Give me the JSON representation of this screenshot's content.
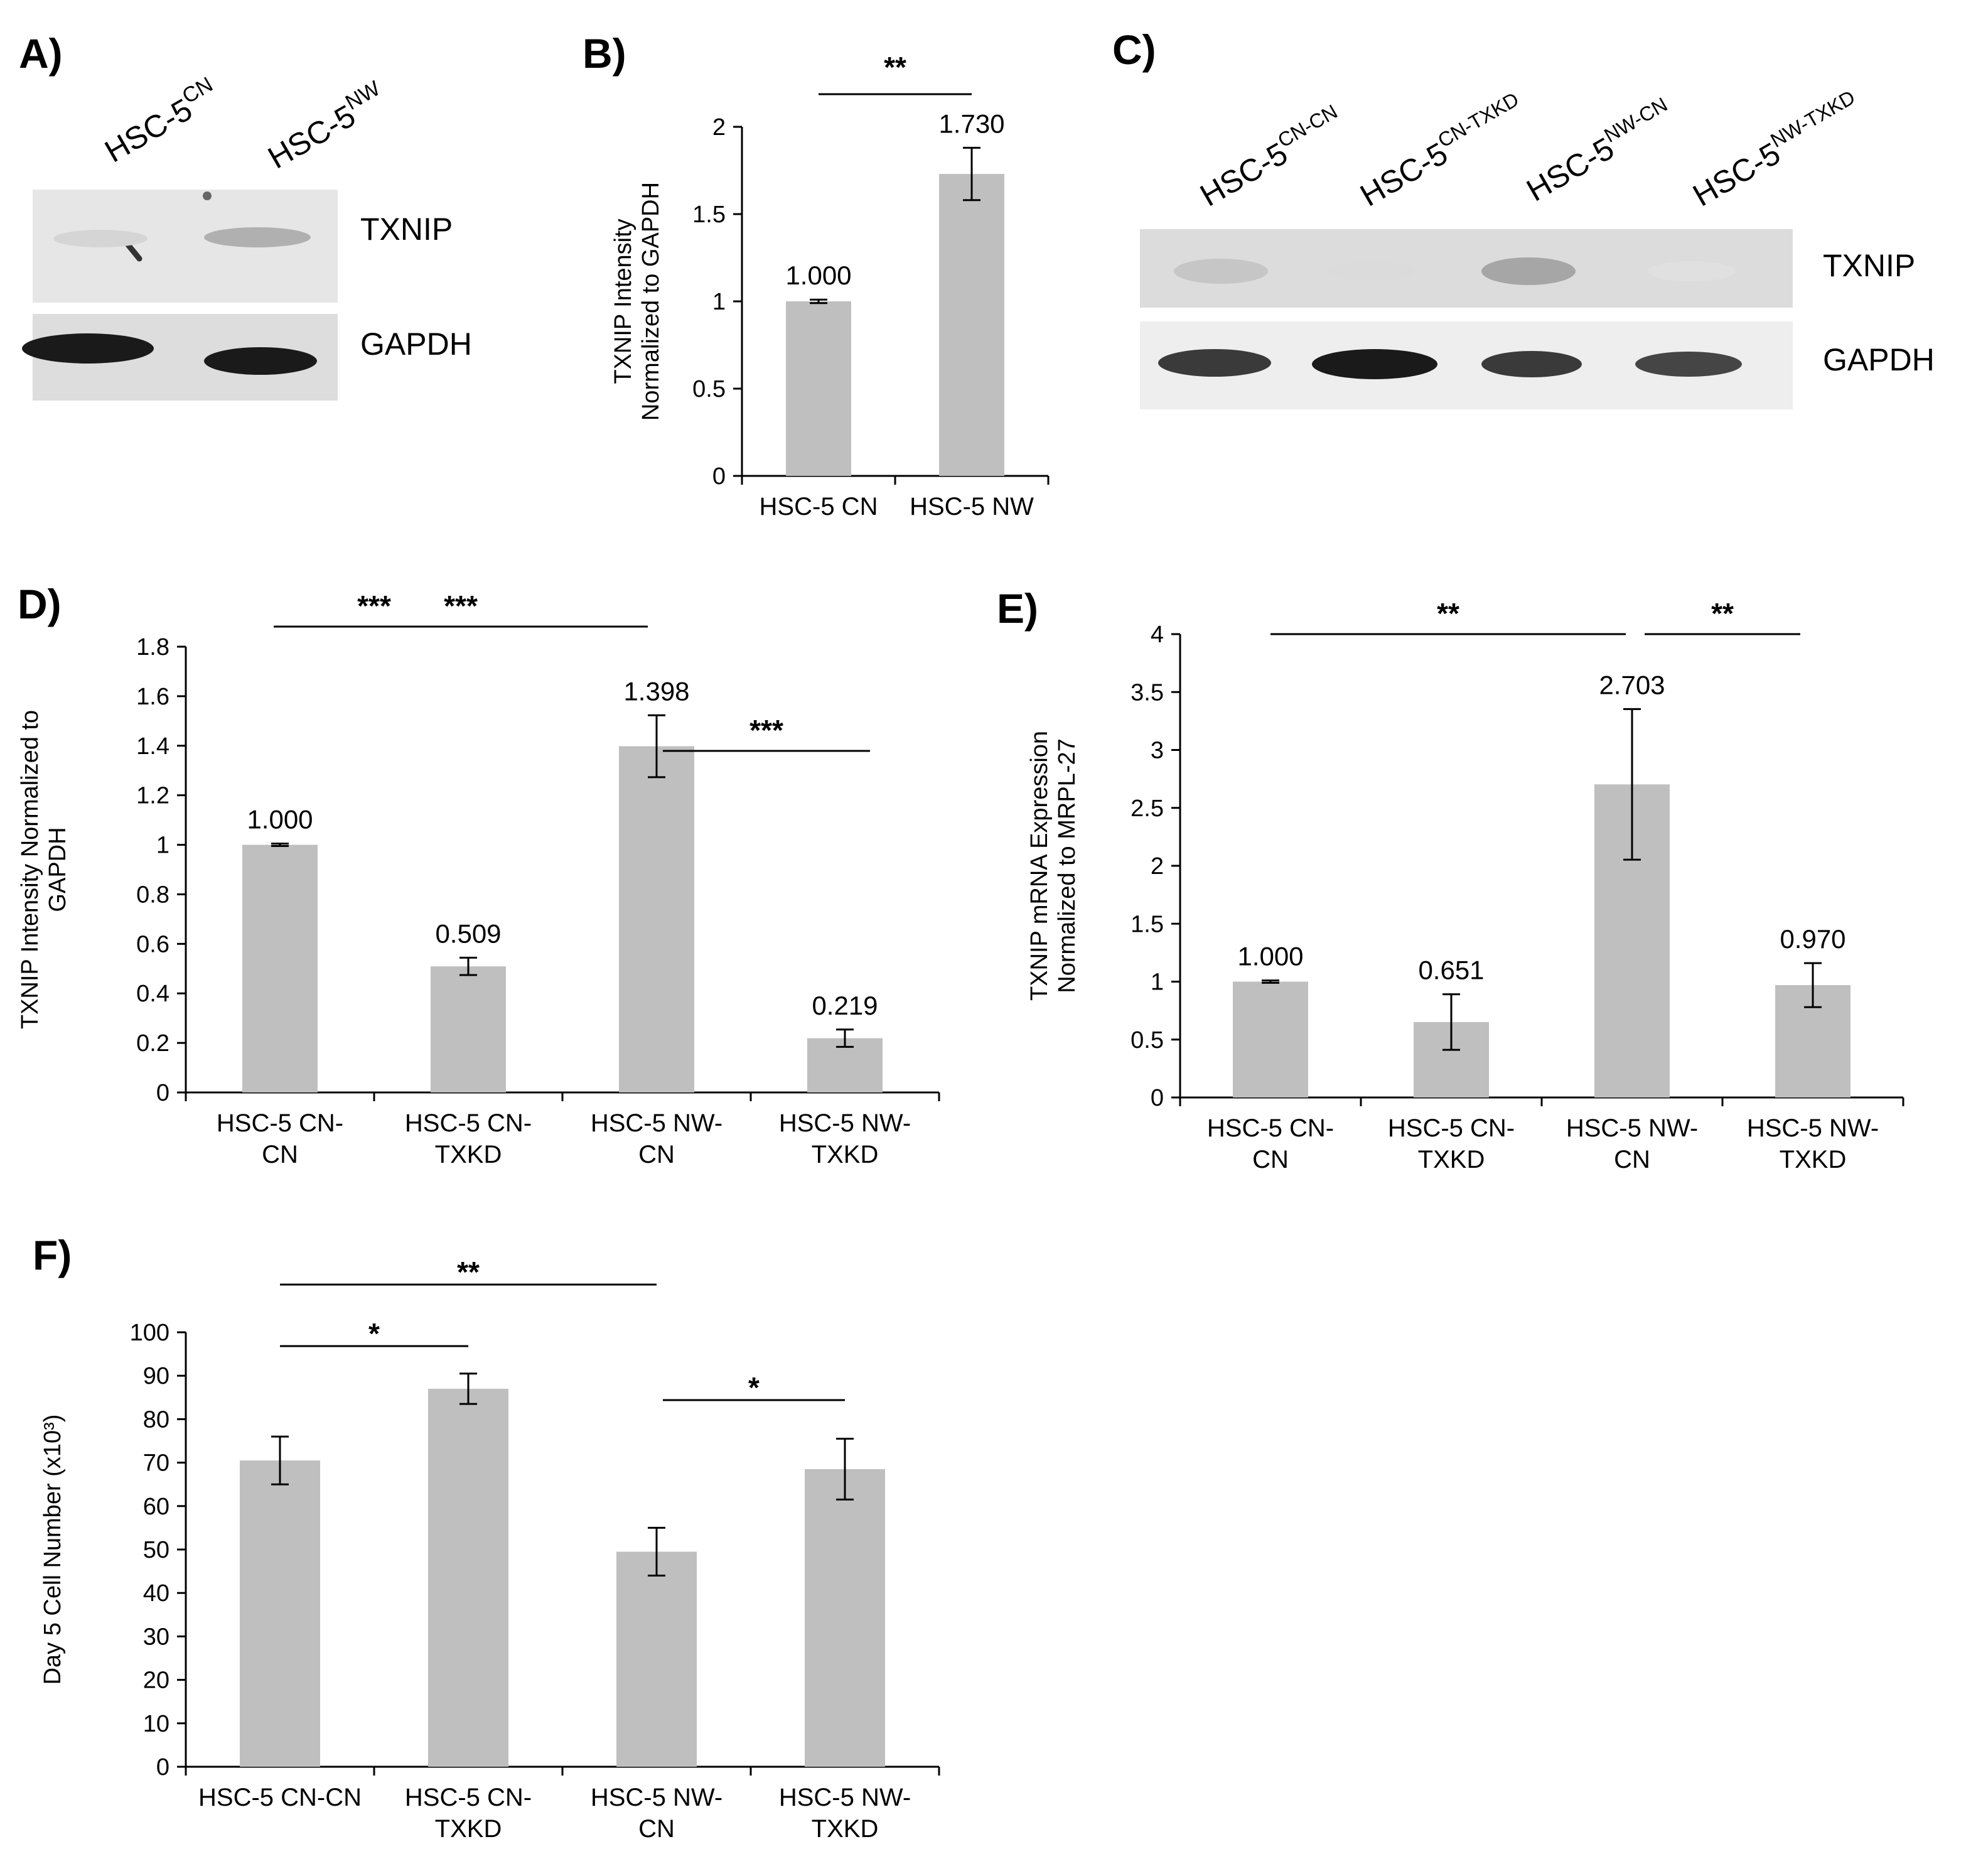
{
  "colors": {
    "bar": "#bfbfbf",
    "axis": "#000000",
    "band_dark": "#111111",
    "blot_bg_light": "#e8e8e8",
    "blot_bg_mid": "#dcdcdc"
  },
  "panel_a": {
    "label": "A)",
    "lanes": [
      {
        "base": "HSC-5",
        "sup": "CN"
      },
      {
        "base": "HSC-5",
        "sup": "NW"
      }
    ],
    "bands": [
      "TXNIP",
      "GAPDH"
    ],
    "txnip_intensity": [
      0.08,
      0.25
    ],
    "gapdh_intensity": [
      0.95,
      0.95
    ]
  },
  "panel_c": {
    "label": "C)",
    "lanes": [
      {
        "base": "HSC-5",
        "sup": "CN-CN"
      },
      {
        "base": "HSC-5",
        "sup": "CN-TXKD"
      },
      {
        "base": "HSC-5",
        "sup": "NW-CN"
      },
      {
        "base": "HSC-5",
        "sup": "NW-TXKD"
      }
    ],
    "bands": [
      "TXNIP",
      "GAPDH"
    ],
    "txnip_intensity": [
      0.15,
      0.05,
      0.3,
      0.03
    ],
    "gapdh_intensity": [
      0.8,
      0.95,
      0.8,
      0.75
    ]
  },
  "chart_data": [
    {
      "id": "B",
      "label": "B)",
      "type": "bar",
      "title": "",
      "ylabel_lines": [
        "TXNIP Intensity",
        "Normalized to GAPDH"
      ],
      "categories": [
        [
          "HSC-5 CN"
        ],
        [
          "HSC-5 NW"
        ]
      ],
      "values": [
        1.0,
        1.73
      ],
      "errors": [
        0.01,
        0.15
      ],
      "value_labels": [
        "1.000",
        "1.730"
      ],
      "ylim": [
        0,
        2
      ],
      "yticks": [
        0,
        0.5,
        1,
        1.5,
        2
      ],
      "ytick_labels": [
        "0",
        "0.5",
        "1",
        "1.5",
        "2"
      ],
      "significance": [
        {
          "from": 0,
          "to": 1,
          "label": "**"
        }
      ]
    },
    {
      "id": "D",
      "label": "D)",
      "type": "bar",
      "title": "",
      "ylabel_lines": [
        "TXNIP Intensity Normalized to",
        "GAPDH"
      ],
      "categories": [
        [
          "HSC-5 CN-",
          "CN"
        ],
        [
          "HSC-5 CN-",
          "TXKD"
        ],
        [
          "HSC-5 NW-",
          "CN"
        ],
        [
          "HSC-5 NW-",
          "TXKD"
        ]
      ],
      "values": [
        1.0,
        0.509,
        1.398,
        0.219
      ],
      "errors": [
        0.005,
        0.035,
        0.125,
        0.035
      ],
      "value_labels": [
        "1.000",
        "0.509",
        "1.398",
        "0.219"
      ],
      "ylim": [
        0,
        1.8
      ],
      "yticks": [
        0,
        0.2,
        0.4,
        0.6,
        0.8,
        1,
        1.2,
        1.4,
        1.6,
        1.8
      ],
      "ytick_labels": [
        "0",
        "0.2",
        "0.4",
        "0.6",
        "0.8",
        "1",
        "1.2",
        "1.4",
        "1.6",
        "1.8"
      ],
      "significance": [
        {
          "from": 0,
          "to": 2,
          "label": "***"
        },
        {
          "from": 2,
          "to": 3,
          "label": "***"
        },
        {
          "from": 0,
          "to": 1,
          "label": "***"
        }
      ]
    },
    {
      "id": "E",
      "label": "E)",
      "type": "bar",
      "title": "",
      "ylabel_lines": [
        "TXNIP mRNA Expression",
        "Normalized to MRPL-27"
      ],
      "categories": [
        [
          "HSC-5 CN-",
          "CN"
        ],
        [
          "HSC-5 CN-",
          "TXKD"
        ],
        [
          "HSC-5 NW-",
          "CN"
        ],
        [
          "HSC-5 NW-",
          "TXKD"
        ]
      ],
      "values": [
        1.0,
        0.651,
        2.703,
        0.97
      ],
      "errors": [
        0.01,
        0.24,
        0.65,
        0.19
      ],
      "value_labels": [
        "1.000",
        "0.651",
        "2.703",
        "0.970"
      ],
      "ylim": [
        0,
        4
      ],
      "yticks": [
        0,
        0.5,
        1,
        1.5,
        2,
        2.5,
        3,
        3.5,
        4
      ],
      "ytick_labels": [
        "0",
        "0.5",
        "1",
        "1.5",
        "2",
        "2.5",
        "3",
        "3.5",
        "4"
      ],
      "significance": [
        {
          "from": 0,
          "to": 2,
          "label": "**"
        },
        {
          "from": 2,
          "to": 3,
          "label": "**"
        }
      ]
    },
    {
      "id": "F",
      "label": "F)",
      "type": "bar",
      "title": "",
      "ylabel_lines": [
        "Day 5 Cell Number (x10³)"
      ],
      "categories": [
        [
          "HSC-5 CN-CN"
        ],
        [
          "HSC-5 CN-",
          "TXKD"
        ],
        [
          "HSC-5 NW-",
          "CN"
        ],
        [
          "HSC-5 NW-",
          "TXKD"
        ]
      ],
      "values": [
        70.5,
        87,
        49.5,
        68.5
      ],
      "errors": [
        5.5,
        3.5,
        5.5,
        7
      ],
      "value_labels": [],
      "ylim": [
        0,
        100
      ],
      "yticks": [
        0,
        10,
        20,
        30,
        40,
        50,
        60,
        70,
        80,
        90,
        100
      ],
      "ytick_labels": [
        "0",
        "10",
        "20",
        "30",
        "40",
        "50",
        "60",
        "70",
        "80",
        "90",
        "100"
      ],
      "significance": [
        {
          "from": 0,
          "to": 2,
          "label": "**"
        },
        {
          "from": 0,
          "to": 1,
          "label": "*"
        },
        {
          "from": 2,
          "to": 3,
          "label": "*"
        }
      ]
    }
  ]
}
